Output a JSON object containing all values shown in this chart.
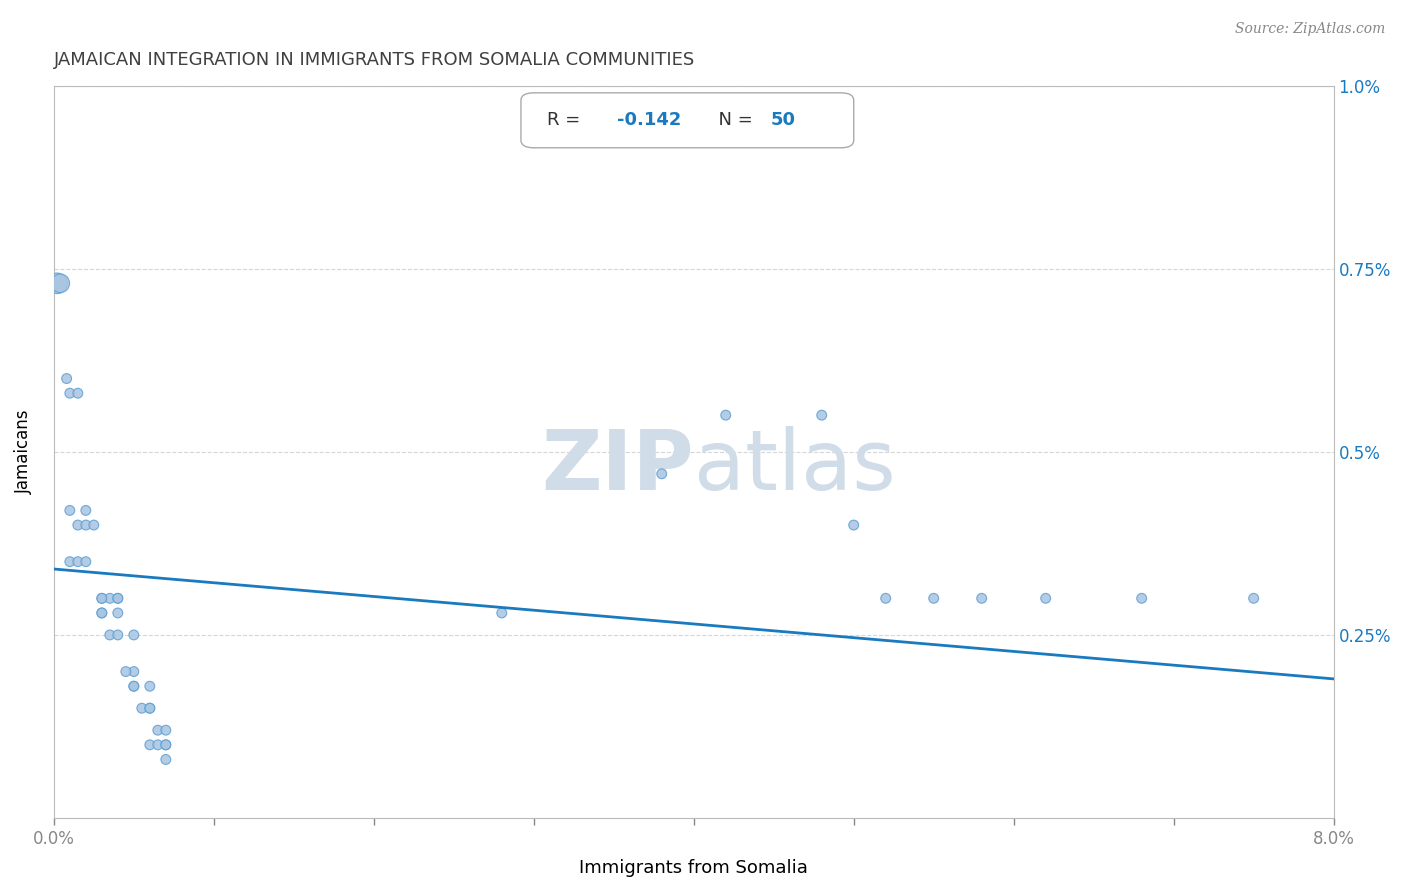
{
  "title": "JAMAICAN INTEGRATION IN IMMIGRANTS FROM SOMALIA COMMUNITIES",
  "source": "Source: ZipAtlas.com",
  "xlabel": "Immigrants from Somalia",
  "ylabel": "Jamaicans",
  "R": -0.142,
  "N": 50,
  "xlim": [
    0.0,
    0.08
  ],
  "ylim": [
    0.0,
    0.01
  ],
  "scatter_color": "#a8c4e0",
  "scatter_edge_color": "#5a9fd4",
  "line_color": "#1a7abf",
  "watermark_color": "#d0dce8",
  "background_color": "#ffffff",
  "grid_color": "#cccccc",
  "title_color": "#404040",
  "axis_label_color": "#1a7abf",
  "scatter_x": [
    0.0002,
    0.0004,
    0.0008,
    0.001,
    0.0015,
    0.001,
    0.0015,
    0.002,
    0.001,
    0.0015,
    0.002,
    0.0025,
    0.002,
    0.003,
    0.003,
    0.0035,
    0.004,
    0.003,
    0.003,
    0.004,
    0.0035,
    0.004,
    0.004,
    0.005,
    0.005,
    0.0045,
    0.005,
    0.005,
    0.006,
    0.0055,
    0.006,
    0.006,
    0.0065,
    0.006,
    0.0065,
    0.007,
    0.007,
    0.007,
    0.007,
    0.028,
    0.038,
    0.042,
    0.048,
    0.05,
    0.052,
    0.055,
    0.058,
    0.062,
    0.068,
    0.075
  ],
  "scatter_y": [
    0.0073,
    0.0073,
    0.006,
    0.0058,
    0.0058,
    0.0042,
    0.004,
    0.004,
    0.0035,
    0.0035,
    0.0035,
    0.004,
    0.0042,
    0.003,
    0.0028,
    0.003,
    0.003,
    0.0028,
    0.003,
    0.003,
    0.0025,
    0.0028,
    0.0025,
    0.0025,
    0.002,
    0.002,
    0.0018,
    0.0018,
    0.0018,
    0.0015,
    0.0015,
    0.0015,
    0.0012,
    0.001,
    0.001,
    0.0012,
    0.001,
    0.001,
    0.0008,
    0.0028,
    0.0047,
    0.0055,
    0.0055,
    0.004,
    0.003,
    0.003,
    0.003,
    0.003,
    0.003,
    0.003
  ],
  "scatter_sizes": [
    220,
    180,
    50,
    50,
    50,
    50,
    50,
    50,
    50,
    50,
    50,
    50,
    50,
    50,
    50,
    50,
    50,
    50,
    50,
    50,
    50,
    50,
    50,
    50,
    50,
    50,
    50,
    50,
    50,
    50,
    50,
    50,
    50,
    50,
    50,
    50,
    50,
    50,
    50,
    50,
    50,
    50,
    50,
    50,
    50,
    50,
    50,
    50,
    50,
    50
  ],
  "line_x": [
    0.0,
    0.08
  ],
  "line_y": [
    0.0034,
    0.0019
  ]
}
